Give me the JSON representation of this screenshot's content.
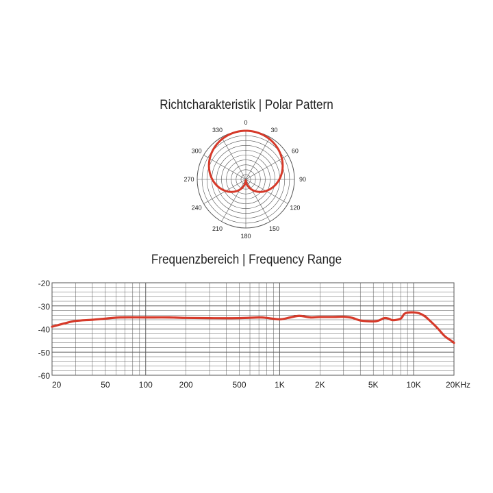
{
  "polar_title": "Richtcharakteristik | Polar Pattern",
  "frequency_title": "Frequenzbereich | Frequency Range",
  "colors": {
    "curve": "#d63a2a",
    "grid": "#555555",
    "text": "#222222"
  },
  "chart_data": [
    {
      "type": "polar",
      "title": "Richtcharakteristik | Polar Pattern",
      "angle_labels": [
        "0",
        "30",
        "60",
        "90",
        "120",
        "150",
        "180",
        "210",
        "240",
        "270",
        "300",
        "330"
      ],
      "pattern": "cardioid",
      "grid": true
    },
    {
      "type": "line",
      "title": "Frequenzbereich | Frequency Range",
      "x_scale": "log",
      "xlim": [
        20,
        20000
      ],
      "ylim": [
        -60,
        -20
      ],
      "x_ticks": [
        {
          "value": 20,
          "label": "20"
        },
        {
          "value": 50,
          "label": "50"
        },
        {
          "value": 100,
          "label": "100"
        },
        {
          "value": 200,
          "label": "200"
        },
        {
          "value": 500,
          "label": "500"
        },
        {
          "value": 1000,
          "label": "1K"
        },
        {
          "value": 2000,
          "label": "2K"
        },
        {
          "value": 5000,
          "label": "5K"
        },
        {
          "value": 10000,
          "label": "10K"
        },
        {
          "value": 20000,
          "label": "20KHz"
        }
      ],
      "y_ticks": [
        {
          "value": -20,
          "label": "-20"
        },
        {
          "value": -30,
          "label": "-30"
        },
        {
          "value": -40,
          "label": "-40"
        },
        {
          "value": -50,
          "label": "-50"
        },
        {
          "value": -60,
          "label": "-60"
        }
      ],
      "grid": true,
      "series": [
        {
          "x": [
            20,
            25,
            30,
            40,
            50,
            65,
            100,
            150,
            200,
            300,
            500,
            700,
            800,
            1000,
            1200,
            1400,
            1700,
            2000,
            2500,
            3000,
            3500,
            4000,
            5000,
            5500,
            6000,
            6500,
            7000,
            8000,
            8500,
            9000,
            10000,
            11000,
            12000,
            13000,
            15000,
            17000,
            19000,
            20000
          ],
          "y": [
            -39,
            -37.5,
            -36.5,
            -36,
            -35.5,
            -35,
            -35,
            -35,
            -35.2,
            -35.3,
            -35.3,
            -35,
            -35.2,
            -35.8,
            -35,
            -34.3,
            -35,
            -34.8,
            -34.8,
            -34.7,
            -35.2,
            -36.3,
            -36.7,
            -36.3,
            -35.3,
            -35.5,
            -36.2,
            -35.5,
            -33.5,
            -32.9,
            -32.8,
            -33.2,
            -34.3,
            -36,
            -39.5,
            -43,
            -45,
            -46
          ]
        }
      ]
    }
  ]
}
